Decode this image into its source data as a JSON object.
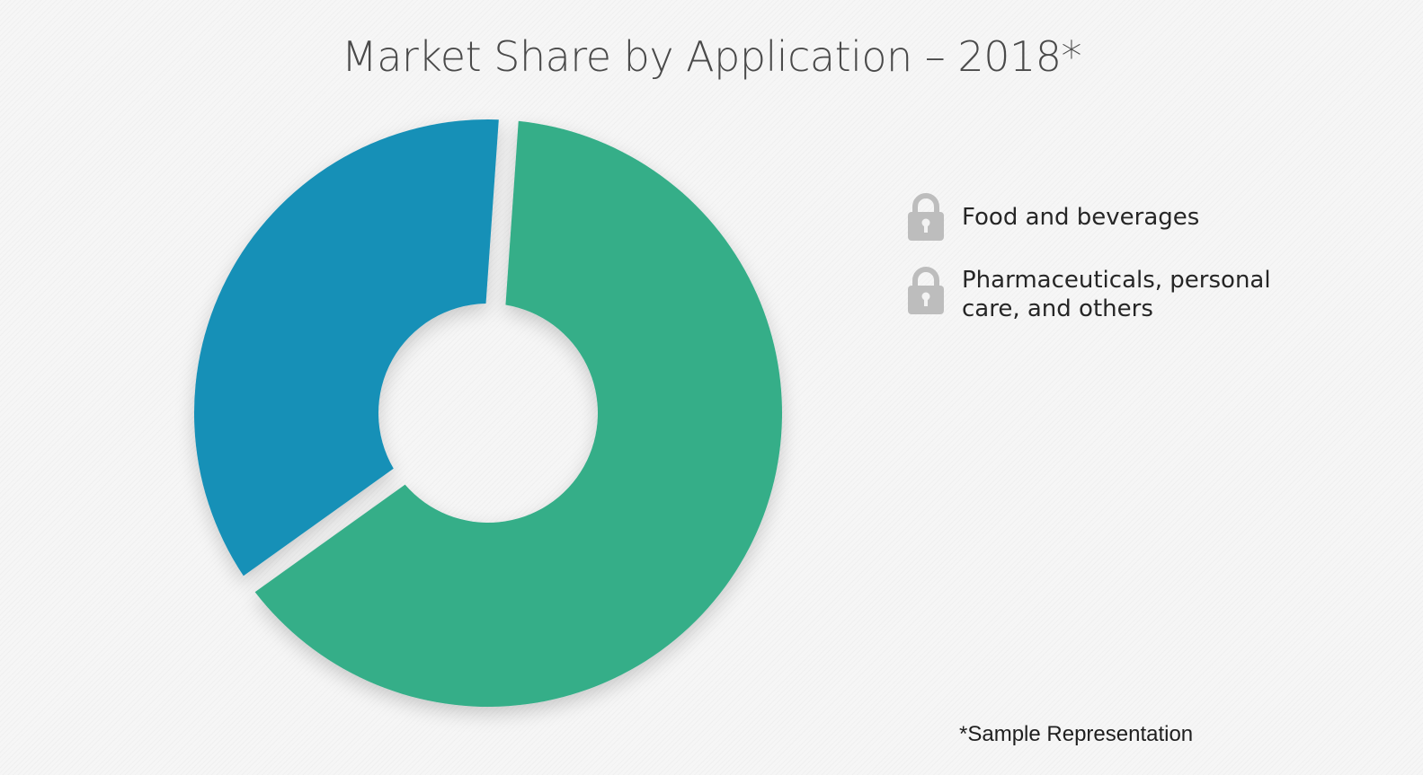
{
  "chart_data": {
    "type": "pie",
    "title": "Market Share by Application – 2018*",
    "donut": true,
    "series": [
      {
        "name": "Food and beverages",
        "value": 64,
        "color": "#36ae88"
      },
      {
        "name": "Pharmaceuticals, personal care, and others",
        "value": 36,
        "color": "#1690b7"
      }
    ],
    "legend": {
      "position": "right",
      "items": [
        {
          "label": "Food and beverages",
          "icon": "lock-icon"
        },
        {
          "label": "Pharmaceuticals, personal care, and others",
          "icon": "lock-icon"
        }
      ]
    },
    "footnote": "*Sample Representation"
  }
}
